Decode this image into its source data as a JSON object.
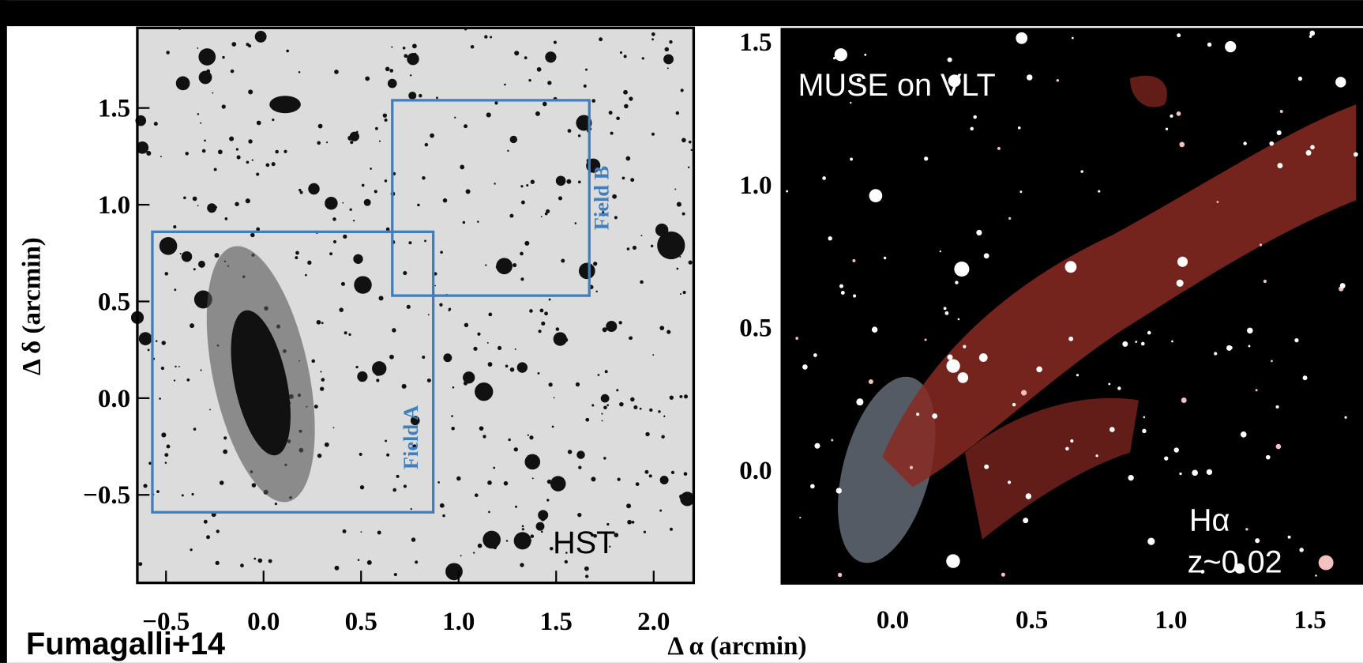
{
  "credit": "Fumagalli+14",
  "xlabel": "Δ α (arcmin)",
  "ylabel": "Δ δ (arcmin)",
  "panels": [
    {
      "label": "HST",
      "xlim": [
        -0.647,
        2.205
      ],
      "ylim": [
        -0.955,
        1.914
      ],
      "xticks": [
        {
          "value": -0.5,
          "label": "−0.5"
        },
        {
          "value": 0,
          "label": "0.0"
        },
        0.5,
        {
          "value": 1,
          "label": "1.0"
        },
        1.5,
        {
          "value": 2,
          "label": "2.0"
        }
      ],
      "yticks": [
        {
          "value": -0.5,
          "label": "−0.5"
        },
        {
          "value": 0,
          "label": "0.0"
        },
        0.5,
        {
          "value": 1,
          "label": "1.0"
        },
        1.5
      ],
      "fields": [
        {
          "name": "Field A",
          "x": [
            -0.57,
            0.87
          ],
          "y": [
            -0.59,
            0.86
          ]
        },
        {
          "name": "Field B",
          "x": [
            0.66,
            1.67
          ],
          "y": [
            0.53,
            1.54
          ]
        }
      ]
    },
    {
      "label": "MUSE on VLT",
      "line": "Hα",
      "redshift": "z~0.02",
      "xlim": [
        -0.403,
        1.69
      ],
      "ylim": [
        -0.4,
        1.549
      ],
      "xticks": [
        {
          "value": 0,
          "label": "0.0"
        },
        0.5,
        {
          "value": 1,
          "label": "1.0"
        },
        1.5
      ],
      "yticks": [
        {
          "value": 0,
          "label": "0.0"
        },
        0.5,
        {
          "value": 1,
          "label": "1.0"
        },
        1.5
      ]
    }
  ]
}
